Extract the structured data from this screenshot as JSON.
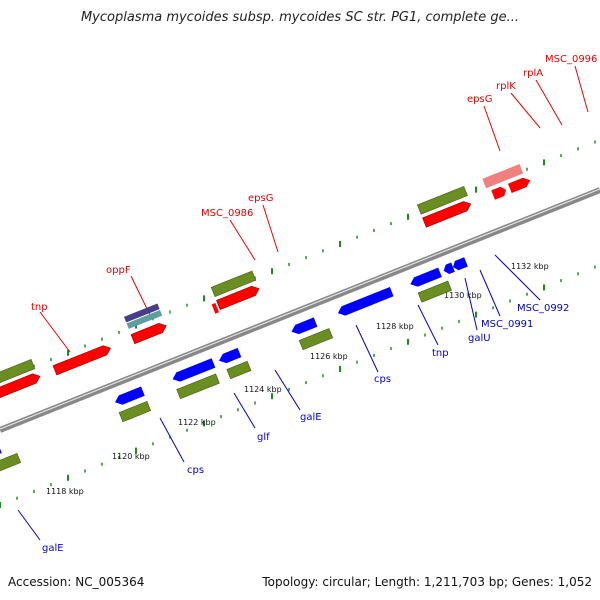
{
  "title": "Mycoplasma mycoides subsp. mycoides SC str. PG1, complete ge...",
  "footer": {
    "accession": "Accession: NC_005364",
    "summary": "Topology: circular; Length: 1,211,703 bp; Genes: 1,052"
  },
  "colors": {
    "backbone": "#8c8c8c",
    "forward_cds": "#ff0000",
    "reverse_cds": "#0000ff",
    "gene": "#6b8e23",
    "pseudo_light": "#f08080",
    "dark_feature": "#483d8b",
    "teal_feature": "#5f9ea0",
    "tick": "#1a8c1a",
    "forward_label": "#e60000",
    "reverse_label": "#0000d0"
  },
  "scale_labels": [
    "1118 kbp",
    "1120 kbp",
    "1122 kbp",
    "1124 kbp",
    "1126 kbp",
    "1128 kbp",
    "1130 kbp",
    "1132 kbp"
  ],
  "forward_labels": [
    "tnp",
    "oppF",
    "MSC_0986",
    "epsG",
    "epsG",
    "rplK",
    "rplA",
    "MSC_0996"
  ],
  "reverse_labels": [
    "galE",
    "cps",
    "glf",
    "galE",
    "cps",
    "tnp",
    "galU",
    "MSC_0991",
    "MSC_0992"
  ]
}
